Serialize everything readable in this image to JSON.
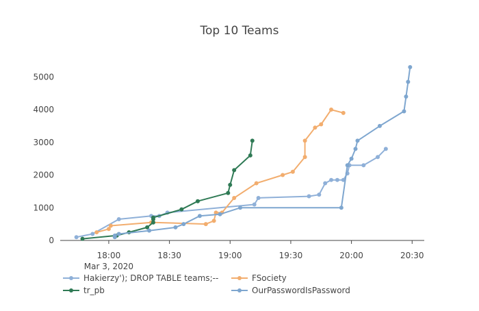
{
  "chart_data": {
    "type": "line",
    "title": "Top 10 Teams",
    "xlabel": "",
    "ylabel": "",
    "x_date_label": "Mar 3, 2020",
    "x_ticks": [
      "18:00",
      "18:30",
      "19:00",
      "19:30",
      "20:00",
      "20:30"
    ],
    "y_ticks": [
      0,
      1000,
      2000,
      3000,
      4000,
      5000
    ],
    "ylim": [
      0,
      5300
    ],
    "xlim": [
      "17:36",
      "20:36"
    ],
    "grid": false,
    "legend_position": "bottom",
    "series": [
      {
        "name": "Hakierzy'); DROP TABLE teams;--",
        "color": "#8fb0d8",
        "points": [
          [
            "17:44",
            100
          ],
          [
            "17:52",
            200
          ],
          [
            "18:05",
            650
          ],
          [
            "18:21",
            750
          ],
          [
            "18:25",
            750
          ],
          [
            "18:29",
            850
          ],
          [
            "19:12",
            1100
          ],
          [
            "19:14",
            1300
          ],
          [
            "19:39",
            1350
          ],
          [
            "19:44",
            1400
          ],
          [
            "19:47",
            1750
          ],
          [
            "19:50",
            1850
          ],
          [
            "19:53",
            1850
          ],
          [
            "19:56",
            1850
          ],
          [
            "19:58",
            2050
          ],
          [
            "19:59",
            2300
          ],
          [
            "20:06",
            2300
          ],
          [
            "20:13",
            2550
          ],
          [
            "20:17",
            2800
          ]
        ]
      },
      {
        "name": "FSociety",
        "color": "#f2ad6e",
        "points": [
          [
            "17:54",
            250
          ],
          [
            "18:00",
            350
          ],
          [
            "18:01",
            450
          ],
          [
            "18:21",
            550
          ],
          [
            "18:22",
            550
          ],
          [
            "18:48",
            500
          ],
          [
            "18:52",
            600
          ],
          [
            "18:53",
            850
          ],
          [
            "18:56",
            850
          ],
          [
            "19:02",
            1300
          ],
          [
            "19:13",
            1750
          ],
          [
            "19:26",
            2000
          ],
          [
            "19:31",
            2100
          ],
          [
            "19:37",
            2550
          ],
          [
            "19:37",
            3050
          ],
          [
            "19:42",
            3450
          ],
          [
            "19:45",
            3550
          ],
          [
            "19:50",
            4000
          ],
          [
            "19:56",
            3900
          ]
        ]
      },
      {
        "name": "tr_pb",
        "color": "#2f7a55",
        "points": [
          [
            "17:47",
            50
          ],
          [
            "18:04",
            150
          ],
          [
            "18:10",
            250
          ],
          [
            "18:19",
            400
          ],
          [
            "18:22",
            550
          ],
          [
            "18:22",
            650
          ],
          [
            "18:22",
            700
          ],
          [
            "18:36",
            950
          ],
          [
            "18:44",
            1200
          ],
          [
            "18:59",
            1450
          ],
          [
            "19:00",
            1700
          ],
          [
            "19:02",
            2150
          ],
          [
            "19:10",
            2600
          ],
          [
            "19:11",
            3050
          ]
        ]
      },
      {
        "name": "OurPasswordIsPassword",
        "color": "#7ea6cf",
        "points": [
          [
            "18:03",
            100
          ],
          [
            "18:03",
            150
          ],
          [
            "18:05",
            200
          ],
          [
            "18:20",
            300
          ],
          [
            "18:33",
            400
          ],
          [
            "18:37",
            500
          ],
          [
            "18:45",
            750
          ],
          [
            "18:55",
            800
          ],
          [
            "19:05",
            1000
          ],
          [
            "19:55",
            1000
          ],
          [
            "19:58",
            2300
          ],
          [
            "20:00",
            2500
          ],
          [
            "20:02",
            2800
          ],
          [
            "20:03",
            3050
          ],
          [
            "20:14",
            3500
          ],
          [
            "20:26",
            3950
          ],
          [
            "20:27",
            4400
          ],
          [
            "20:28",
            4850
          ],
          [
            "20:29",
            5300
          ]
        ]
      }
    ]
  }
}
